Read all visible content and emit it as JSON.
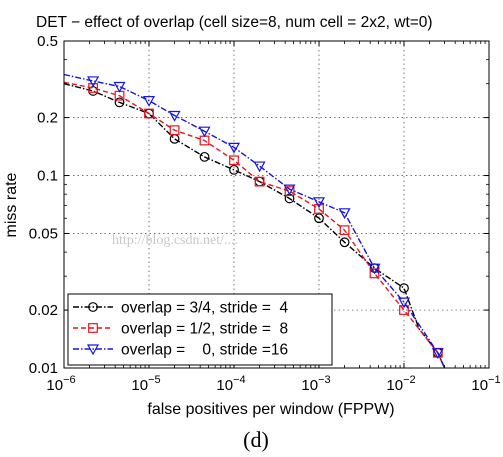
{
  "caption": "(d)",
  "watermark": "http://blog.csdn.net/....",
  "chart_data": {
    "type": "line",
    "title": "DET − effect of overlap (cell size=8, num cell = 2x2, wt=0)",
    "xlabel": "false positives per window (FPPW)",
    "ylabel": "miss rate",
    "xscale": "log",
    "yscale": "log",
    "xlim": [
      1e-06,
      0.1
    ],
    "ylim": [
      0.01,
      0.5
    ],
    "grid": true,
    "legend_position": "lower-left",
    "x_ticks": [
      {
        "value": 1e-06,
        "base": "10",
        "exp": "−6"
      },
      {
        "value": 1e-05,
        "base": "10",
        "exp": "−5"
      },
      {
        "value": 0.0001,
        "base": "10",
        "exp": "−4"
      },
      {
        "value": 0.001,
        "base": "10",
        "exp": "−3"
      },
      {
        "value": 0.01,
        "base": "10",
        "exp": "−2"
      },
      {
        "value": 0.1,
        "base": "10",
        "exp": "−1"
      }
    ],
    "y_ticks": [
      {
        "value": 0.01,
        "label": "0.01"
      },
      {
        "value": 0.02,
        "label": "0.02"
      },
      {
        "value": 0.05,
        "label": "0.05"
      },
      {
        "value": 0.1,
        "label": "0.1"
      },
      {
        "value": 0.2,
        "label": "0.2"
      },
      {
        "value": 0.5,
        "label": "0.5"
      }
    ],
    "series": [
      {
        "name": "overlap = 3/4, stride =  4",
        "color": "#000000",
        "marker": "circle",
        "x": [
          1e-06,
          2.2e-06,
          4.5e-06,
          1e-05,
          2e-05,
          4.5e-05,
          0.0001,
          0.0002,
          0.00045,
          0.001,
          0.002,
          0.0045,
          0.01,
          0.015,
          0.025,
          0.03
        ],
        "y": [
          0.3,
          0.275,
          0.24,
          0.21,
          0.155,
          0.125,
          0.107,
          0.093,
          0.076,
          0.06,
          0.045,
          0.033,
          0.026,
          0.016,
          0.012,
          0.01
        ],
        "markers_x": [
          2.2e-06,
          4.5e-06,
          1e-05,
          2e-05,
          4.5e-05,
          0.0001,
          0.0002,
          0.00045,
          0.001,
          0.002,
          0.0045,
          0.01,
          0.025
        ]
      },
      {
        "name": "overlap = 1/2, stride =  8",
        "color": "#e8141e",
        "marker": "square",
        "x": [
          1e-06,
          2.2e-06,
          4.5e-06,
          1e-05,
          2e-05,
          4.5e-05,
          0.0001,
          0.0002,
          0.00045,
          0.001,
          0.002,
          0.0045,
          0.01,
          0.025,
          0.03
        ],
        "y": [
          0.305,
          0.285,
          0.26,
          0.21,
          0.172,
          0.152,
          0.12,
          0.093,
          0.083,
          0.067,
          0.052,
          0.031,
          0.02,
          0.012,
          0.01
        ],
        "markers_x": [
          2.2e-06,
          4.5e-06,
          1e-05,
          2e-05,
          4.5e-05,
          0.0001,
          0.0002,
          0.00045,
          0.001,
          0.002,
          0.0045,
          0.01,
          0.025
        ]
      },
      {
        "name": "overlap =    0, stride =16",
        "color": "#1414e6",
        "marker": "triangle-down",
        "x": [
          1e-06,
          2.2e-06,
          4.5e-06,
          1e-05,
          2e-05,
          4.5e-05,
          0.0001,
          0.0002,
          0.00045,
          0.001,
          0.002,
          0.0045,
          0.01,
          0.025,
          0.03
        ],
        "y": [
          0.335,
          0.31,
          0.29,
          0.245,
          0.205,
          0.17,
          0.14,
          0.112,
          0.085,
          0.073,
          0.064,
          0.033,
          0.022,
          0.012,
          0.01
        ],
        "markers_x": [
          2.2e-06,
          4.5e-06,
          1e-05,
          2e-05,
          4.5e-05,
          0.0001,
          0.0002,
          0.00045,
          0.001,
          0.002,
          0.0045,
          0.01,
          0.025
        ]
      }
    ]
  }
}
